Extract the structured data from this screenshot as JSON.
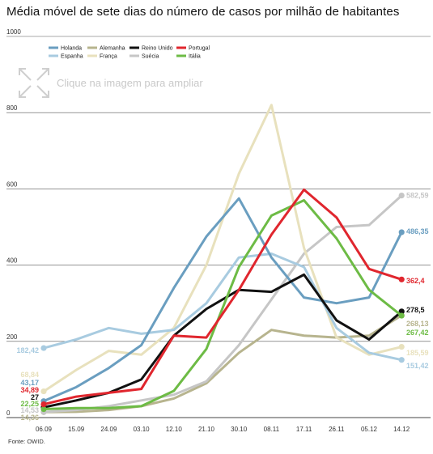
{
  "title": "Média móvel de sete dias do número de casos por milhão de habitantes",
  "source": "Fonte: OWID.",
  "overlay": {
    "text": "Clique na imagem para ampliar",
    "icon": "expand-arrows-icon"
  },
  "chart_data": {
    "type": "line",
    "title": "Média móvel de sete dias do número de casos por milhão de habitantes",
    "xlabel": "",
    "ylabel": "",
    "ylim": [
      0,
      1000
    ],
    "yticks": [
      0,
      200,
      400,
      600,
      800,
      1000
    ],
    "grid": true,
    "legend_position": "top-left",
    "categories": [
      "06.09",
      "15.09",
      "24.09",
      "03.10",
      "12.10",
      "21.10",
      "30.10",
      "08.11",
      "17.11",
      "26.11",
      "05.12",
      "14.12"
    ],
    "series": [
      {
        "name": "Holanda",
        "color": "#6a9ec0",
        "start_label": "43,17",
        "end_label": "486,35",
        "values": [
          43.17,
          80,
          130,
          190,
          340,
          475,
          575,
          420,
          315,
          300,
          315,
          486.35
        ]
      },
      {
        "name": "Espanha",
        "color": "#a8cbe0",
        "start_label": "182,42",
        "end_label": "151,42",
        "values": [
          182.42,
          205,
          235,
          220,
          230,
          300,
          420,
          430,
          395,
          235,
          170,
          151.42
        ]
      },
      {
        "name": "Alemanha",
        "color": "#b7b48e",
        "start_label": "14,36",
        "end_label": "268,13",
        "values": [
          14.36,
          15,
          20,
          30,
          50,
          90,
          170,
          230,
          215,
          210,
          215,
          268.13
        ]
      },
      {
        "name": "França",
        "color": "#e8e1bd",
        "start_label": "68,84",
        "end_label": "185,59",
        "values": [
          68.84,
          125,
          175,
          165,
          235,
          400,
          640,
          820,
          445,
          210,
          165,
          185.59
        ]
      },
      {
        "name": "Reino Unido",
        "color": "#111111",
        "start_label": "27",
        "end_label": "278,5",
        "values": [
          27,
          45,
          65,
          100,
          215,
          285,
          335,
          330,
          375,
          255,
          205,
          278.5
        ]
      },
      {
        "name": "Suécia",
        "color": "#c6c6c6",
        "start_label": "14,53",
        "end_label": "582,59",
        "values": [
          14.53,
          20,
          30,
          45,
          60,
          95,
          190,
          310,
          430,
          500,
          505,
          582.59
        ]
      },
      {
        "name": "Portugal",
        "color": "#e0262e",
        "start_label": "34,89",
        "end_label": "362,4",
        "values": [
          34.89,
          55,
          65,
          75,
          215,
          210,
          335,
          480,
          598,
          525,
          390,
          362.4
        ]
      },
      {
        "name": "Itália",
        "color": "#6dbb45",
        "start_label": "22,25",
        "end_label": "267,42",
        "values": [
          22.25,
          25,
          25,
          30,
          70,
          180,
          395,
          530,
          570,
          470,
          335,
          267.42
        ]
      }
    ]
  }
}
